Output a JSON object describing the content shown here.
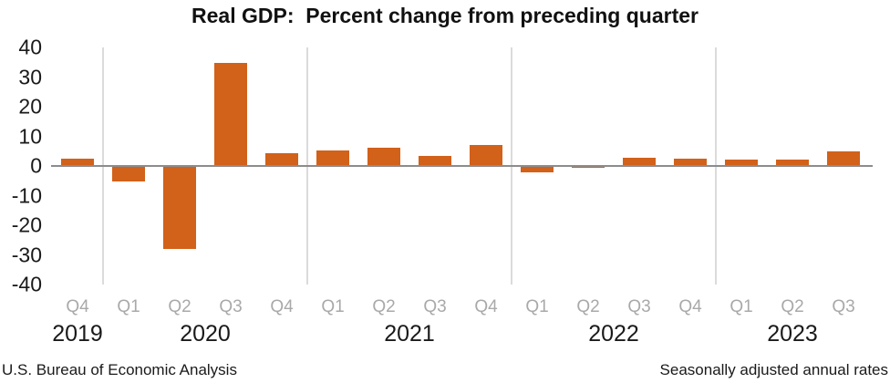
{
  "title": "Real GDP:  Percent change from preceding quarter",
  "footer": {
    "left": "U.S. Bureau of Economic Analysis",
    "right": "Seasonally adjusted annual rates"
  },
  "colors": {
    "bar": "#D2611A",
    "gridline": "#DBDBDB",
    "zero_axis": "#8C8C8C",
    "quarter_label": "#A9A9A9",
    "year_label": "#1A1A1A",
    "tick_label": "#1A1A1A",
    "title": "#111111"
  },
  "chart_data": {
    "type": "bar",
    "title": "Real GDP:  Percent change from preceding quarter",
    "xlabel": "",
    "ylabel": "",
    "ylim": [
      -40,
      40
    ],
    "yticks": [
      40,
      30,
      20,
      10,
      0,
      -10,
      -20,
      -30,
      -40
    ],
    "grid": "vertical-year-separators-only",
    "legend": "none",
    "categories": [
      "2019 Q4",
      "2020 Q1",
      "2020 Q2",
      "2020 Q3",
      "2020 Q4",
      "2021 Q1",
      "2021 Q2",
      "2021 Q3",
      "2021 Q4",
      "2022 Q1",
      "2022 Q2",
      "2022 Q3",
      "2022 Q4",
      "2023 Q1",
      "2023 Q2",
      "2023 Q3"
    ],
    "quarter_labels": [
      "Q4",
      "Q1",
      "Q2",
      "Q3",
      "Q4",
      "Q1",
      "Q2",
      "Q3",
      "Q4",
      "Q1",
      "Q2",
      "Q3",
      "Q4",
      "Q1",
      "Q2",
      "Q3"
    ],
    "values": [
      2.6,
      -5.3,
      -28.0,
      34.8,
      4.2,
      5.2,
      6.2,
      3.3,
      7.0,
      -2.0,
      -0.6,
      2.7,
      2.6,
      2.2,
      2.1,
      4.9
    ],
    "years": [
      {
        "label": "2019",
        "first_slot": 0,
        "num_quarters": 1
      },
      {
        "label": "2020",
        "first_slot": 1,
        "num_quarters": 4
      },
      {
        "label": "2021",
        "first_slot": 5,
        "num_quarters": 4
      },
      {
        "label": "2022",
        "first_slot": 9,
        "num_quarters": 4
      },
      {
        "label": "2023",
        "first_slot": 13,
        "num_quarters": 3
      }
    ]
  }
}
